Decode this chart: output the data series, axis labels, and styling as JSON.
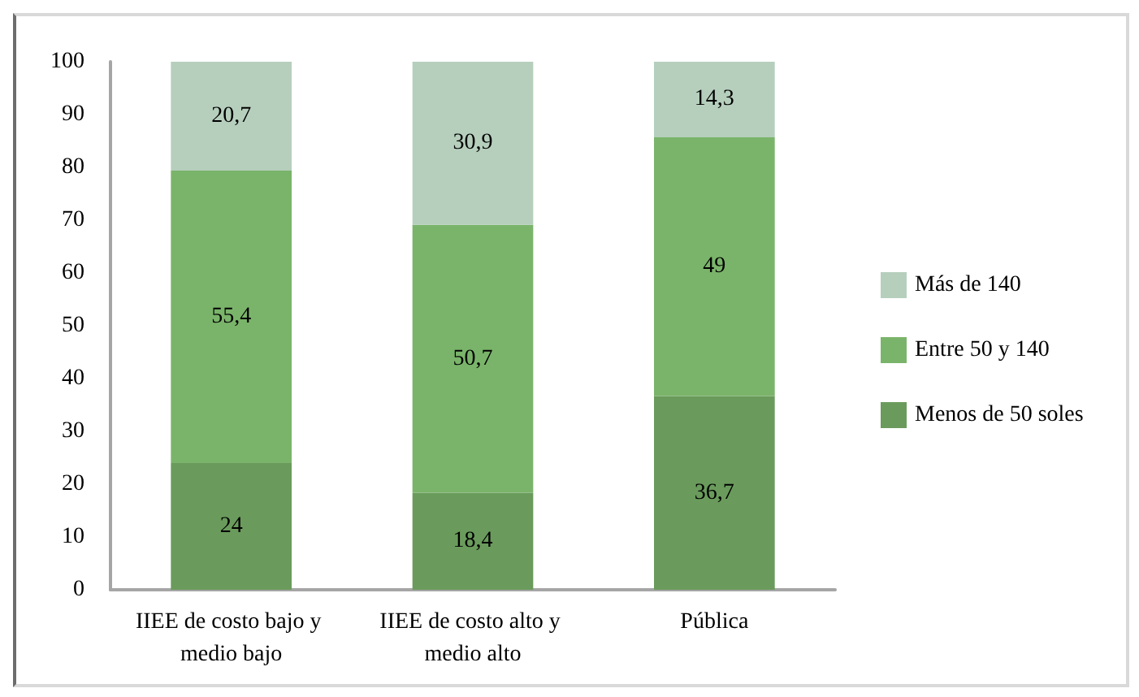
{
  "chart_data": {
    "type": "bar",
    "stacked": true,
    "categories": [
      "IIEE de costo bajo y medio bajo",
      "IIEE de costo alto y medio alto",
      "Pública"
    ],
    "series": [
      {
        "name": "Menos de 50 soles",
        "color": "#6a9b5c",
        "values": [
          24,
          18.4,
          36.7
        ],
        "value_labels": [
          "24",
          "18,4",
          "36,7"
        ]
      },
      {
        "name": "Entre 50 y 140",
        "color": "#7ab46a",
        "values": [
          55.4,
          50.7,
          49
        ],
        "value_labels": [
          "55,4",
          "50,7",
          "49"
        ]
      },
      {
        "name": "Más de 140",
        "color": "#b6cfbd",
        "values": [
          20.7,
          30.9,
          14.3
        ],
        "value_labels": [
          "20,7",
          "30,9",
          "14,3"
        ]
      }
    ],
    "ylim": [
      0,
      100
    ],
    "yticks": [
      0,
      10,
      20,
      30,
      40,
      50,
      60,
      70,
      80,
      90,
      100
    ],
    "grid": false,
    "legend": "right"
  }
}
